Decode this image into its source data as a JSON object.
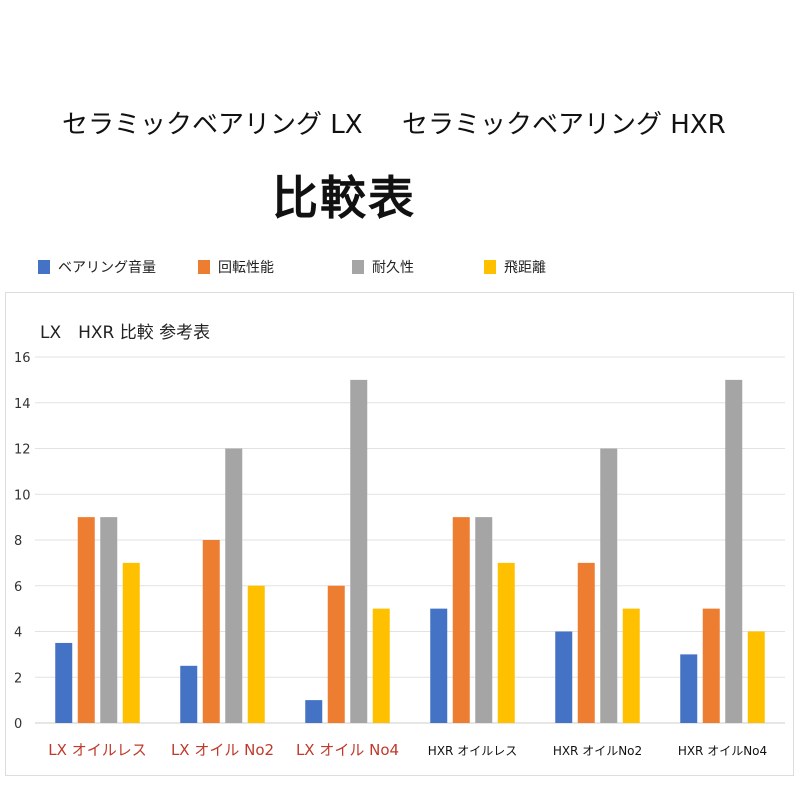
{
  "header": {
    "title_lx": "セラミックベアリング  LX",
    "title_hxr": "セラミックベアリング  HXR",
    "main_title": "比較表"
  },
  "chart_data": {
    "type": "bar",
    "title": "LX　HXR  比較 参考表",
    "categories": [
      "LX オイルレス",
      "LX オイル No2",
      "LX オイル No4",
      "HXR オイルレス",
      "HXR オイルNo2",
      "HXR オイルNo4"
    ],
    "category_colors": [
      "#c0392b",
      "#c0392b",
      "#c0392b",
      "#111111",
      "#111111",
      "#111111"
    ],
    "series": [
      {
        "name": "ベアリング音量",
        "color": "#4472c4",
        "values": [
          3.5,
          2.5,
          1,
          5,
          4,
          3
        ]
      },
      {
        "name": "回転性能",
        "color": "#ed7d31",
        "values": [
          9,
          8,
          6,
          9,
          7,
          5
        ]
      },
      {
        "name": "耐久性",
        "color": "#a5a5a5",
        "values": [
          9,
          12,
          15,
          9,
          12,
          15
        ]
      },
      {
        "name": "飛距離",
        "color": "#ffc000",
        "values": [
          7,
          6,
          5,
          7,
          5,
          4
        ]
      }
    ],
    "ylim": [
      0,
      16
    ],
    "yticks": [
      "0",
      "2",
      "4",
      "6",
      "8",
      "10",
      "12",
      "14",
      "16"
    ],
    "grid": true,
    "legend": "top"
  }
}
